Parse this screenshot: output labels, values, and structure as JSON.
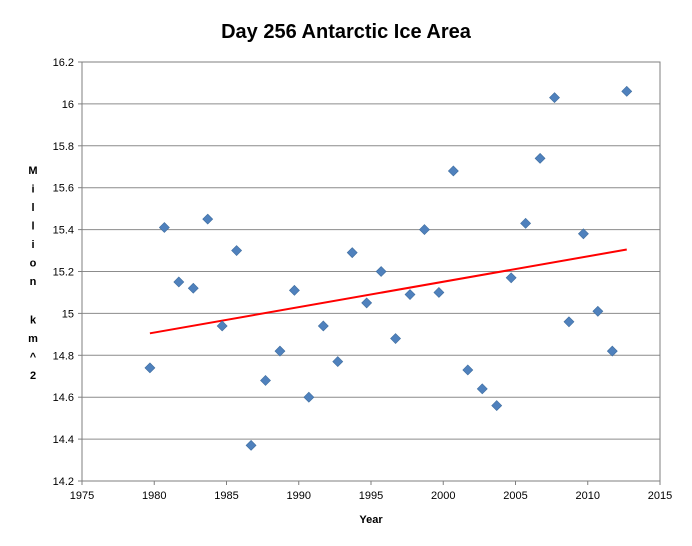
{
  "chart_data": {
    "type": "scatter",
    "title": "Day 256 Antarctic Ice Area",
    "xlabel": "Year",
    "ylabel": "Million km^2",
    "xlim": [
      1975,
      2015
    ],
    "ylim": [
      14.2,
      16.2
    ],
    "x_ticks": [
      1975,
      1980,
      1985,
      1990,
      1995,
      2000,
      2005,
      2010,
      2015
    ],
    "y_ticks": [
      "14.2",
      "14.4",
      "14.6",
      "14.8",
      "15",
      "15.2",
      "15.4",
      "15.6",
      "15.8",
      "16",
      "16.2"
    ],
    "grid": {
      "horizontal": true,
      "vertical": false
    },
    "legend": "none",
    "series": [
      {
        "marker": "diamond",
        "color": "#4F81BD",
        "x": [
          1979.7,
          1980.7,
          1981.7,
          1982.7,
          1983.7,
          1984.7,
          1985.7,
          1986.7,
          1987.7,
          1988.7,
          1989.7,
          1990.7,
          1991.7,
          1992.7,
          1993.7,
          1994.7,
          1995.7,
          1996.7,
          1997.7,
          1998.7,
          1999.7,
          2000.7,
          2001.7,
          2002.7,
          2003.7,
          2004.7,
          2005.7,
          2006.7,
          2007.7,
          2008.7,
          2009.7,
          2010.7,
          2011.7,
          2012.7
        ],
        "y": [
          14.74,
          15.41,
          15.15,
          15.12,
          15.45,
          14.94,
          15.3,
          14.37,
          14.68,
          14.82,
          15.11,
          14.6,
          14.94,
          14.77,
          15.29,
          15.05,
          15.2,
          14.88,
          15.09,
          15.4,
          15.1,
          15.68,
          14.73,
          14.64,
          14.56,
          15.17,
          15.43,
          15.74,
          16.03,
          14.96,
          15.38,
          15.01,
          14.82,
          16.06
        ]
      }
    ],
    "trendline": {
      "type": "linear",
      "color": "#FF0000",
      "x": [
        1979.7,
        2012.7
      ],
      "y": [
        14.905,
        15.305
      ]
    }
  }
}
